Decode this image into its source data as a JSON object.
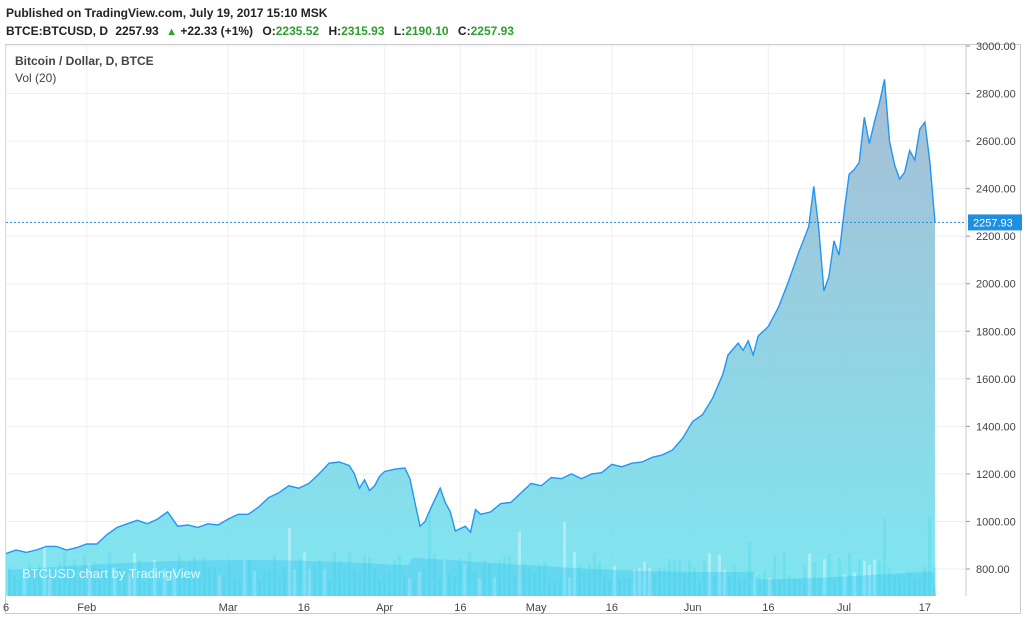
{
  "header": {
    "published": "Published on TradingView.com, July 19, 2017 15:10 MSK",
    "symbol": "BTCE:BTCUSD, D",
    "last": "2257.93",
    "change": "+22.33 (+1%)",
    "o_label": "O:",
    "o_value": "2235.52",
    "h_label": "H:",
    "h_value": "2315.93",
    "l_label": "L:",
    "l_value": "2190.10",
    "c_label": "C:",
    "c_value": "2257.93"
  },
  "legend": {
    "line1": "Bitcoin / Dollar, D, BTCE",
    "line2": "Vol (20)"
  },
  "watermark": "BTCUSD chart by TradingView",
  "colors": {
    "line": "#2196f3",
    "area_top": "#9fb6cf",
    "area_bottom": "#70e4f0",
    "volume": "#4ddbe6",
    "volume_ma": "#33c0f0",
    "price_badge": "#1f8fe0",
    "grid": "#eeeff2"
  },
  "chart_data": {
    "type": "area",
    "title": "Bitcoin / Dollar, D, BTCE",
    "x_range": [
      "2017-01-16",
      "2017-07-19"
    ],
    "ylim": [
      700,
      3000
    ],
    "y_ticks": [
      800,
      1000,
      1200,
      1400,
      1600,
      1800,
      2000,
      2200,
      2400,
      2600,
      2800,
      3000
    ],
    "y_tick_labels": [
      "800.00",
      "1000.00",
      "1200.00",
      "1400.00",
      "1600.00",
      "1800.00",
      "2000.00",
      "2200.00",
      "2400.00",
      "2600.00",
      "2800.00",
      "3000.00"
    ],
    "x_ticks": [
      {
        "date": "2017-01-16",
        "label": "6"
      },
      {
        "date": "2017-02-01",
        "label": "Feb"
      },
      {
        "date": "2017-03-01",
        "label": "Mar"
      },
      {
        "date": "2017-03-16",
        "label": "16"
      },
      {
        "date": "2017-04-01",
        "label": "Apr"
      },
      {
        "date": "2017-04-16",
        "label": "16"
      },
      {
        "date": "2017-05-01",
        "label": "May"
      },
      {
        "date": "2017-05-16",
        "label": "16"
      },
      {
        "date": "2017-06-01",
        "label": "Jun"
      },
      {
        "date": "2017-06-16",
        "label": "16"
      },
      {
        "date": "2017-07-01",
        "label": "Jul"
      },
      {
        "date": "2017-07-17",
        "label": "17"
      }
    ],
    "last_price": 2257.93,
    "last_price_label": "2257.93",
    "grid": true,
    "series": [
      {
        "name": "Bitcoin / Dollar, D, BTCE",
        "points": [
          [
            "2017-01-16",
            865
          ],
          [
            "2017-01-18",
            880
          ],
          [
            "2017-01-20",
            870
          ],
          [
            "2017-01-22",
            880
          ],
          [
            "2017-01-24",
            895
          ],
          [
            "2017-01-26",
            895
          ],
          [
            "2017-01-28",
            880
          ],
          [
            "2017-01-30",
            890
          ],
          [
            "2017-02-01",
            905
          ],
          [
            "2017-02-03",
            905
          ],
          [
            "2017-02-05",
            945
          ],
          [
            "2017-02-07",
            975
          ],
          [
            "2017-02-09",
            990
          ],
          [
            "2017-02-11",
            1005
          ],
          [
            "2017-02-13",
            990
          ],
          [
            "2017-02-15",
            1010
          ],
          [
            "2017-02-17",
            1040
          ],
          [
            "2017-02-19",
            980
          ],
          [
            "2017-02-21",
            985
          ],
          [
            "2017-02-23",
            975
          ],
          [
            "2017-02-25",
            990
          ],
          [
            "2017-02-27",
            985
          ],
          [
            "2017-03-01",
            1010
          ],
          [
            "2017-03-03",
            1030
          ],
          [
            "2017-03-05",
            1030
          ],
          [
            "2017-03-07",
            1060
          ],
          [
            "2017-03-09",
            1100
          ],
          [
            "2017-03-11",
            1120
          ],
          [
            "2017-03-13",
            1150
          ],
          [
            "2017-03-15",
            1140
          ],
          [
            "2017-03-17",
            1160
          ],
          [
            "2017-03-19",
            1200
          ],
          [
            "2017-03-21",
            1245
          ],
          [
            "2017-03-23",
            1250
          ],
          [
            "2017-03-25",
            1235
          ],
          [
            "2017-03-26",
            1200
          ],
          [
            "2017-03-27",
            1140
          ],
          [
            "2017-03-28",
            1175
          ],
          [
            "2017-03-29",
            1130
          ],
          [
            "2017-03-30",
            1150
          ],
          [
            "2017-03-31",
            1190
          ],
          [
            "2017-04-01",
            1210
          ],
          [
            "2017-04-03",
            1220
          ],
          [
            "2017-04-05",
            1225
          ],
          [
            "2017-04-06",
            1180
          ],
          [
            "2017-04-07",
            1080
          ],
          [
            "2017-04-08",
            980
          ],
          [
            "2017-04-09",
            1000
          ],
          [
            "2017-04-10",
            1050
          ],
          [
            "2017-04-12",
            1140
          ],
          [
            "2017-04-13",
            1080
          ],
          [
            "2017-04-14",
            1040
          ],
          [
            "2017-04-15",
            960
          ],
          [
            "2017-04-17",
            980
          ],
          [
            "2017-04-18",
            955
          ],
          [
            "2017-04-19",
            1050
          ],
          [
            "2017-04-20",
            1030
          ],
          [
            "2017-04-22",
            1040
          ],
          [
            "2017-04-24",
            1075
          ],
          [
            "2017-04-26",
            1080
          ],
          [
            "2017-04-28",
            1120
          ],
          [
            "2017-04-30",
            1160
          ],
          [
            "2017-05-02",
            1150
          ],
          [
            "2017-05-04",
            1185
          ],
          [
            "2017-05-06",
            1180
          ],
          [
            "2017-05-08",
            1200
          ],
          [
            "2017-05-10",
            1180
          ],
          [
            "2017-05-12",
            1200
          ],
          [
            "2017-05-14",
            1205
          ],
          [
            "2017-05-16",
            1240
          ],
          [
            "2017-05-18",
            1230
          ],
          [
            "2017-05-20",
            1245
          ],
          [
            "2017-05-22",
            1250
          ],
          [
            "2017-05-24",
            1270
          ],
          [
            "2017-05-26",
            1280
          ],
          [
            "2017-05-28",
            1300
          ],
          [
            "2017-05-30",
            1350
          ],
          [
            "2017-06-01",
            1420
          ],
          [
            "2017-06-03",
            1450
          ],
          [
            "2017-06-05",
            1520
          ],
          [
            "2017-06-07",
            1620
          ],
          [
            "2017-06-08",
            1700
          ],
          [
            "2017-06-10",
            1750
          ],
          [
            "2017-06-11",
            1720
          ],
          [
            "2017-06-12",
            1760
          ],
          [
            "2017-06-13",
            1700
          ],
          [
            "2017-06-14",
            1780
          ],
          [
            "2017-06-16",
            1820
          ],
          [
            "2017-06-18",
            1900
          ],
          [
            "2017-06-20",
            2010
          ],
          [
            "2017-06-22",
            2130
          ],
          [
            "2017-06-24",
            2240
          ],
          [
            "2017-06-25",
            2410
          ],
          [
            "2017-06-26",
            2230
          ],
          [
            "2017-06-27",
            1970
          ],
          [
            "2017-06-28",
            2030
          ],
          [
            "2017-06-29",
            2180
          ],
          [
            "2017-06-30",
            2120
          ],
          [
            "2017-07-01",
            2300
          ],
          [
            "2017-07-02",
            2460
          ],
          [
            "2017-07-03",
            2480
          ],
          [
            "2017-07-04",
            2510
          ],
          [
            "2017-07-05",
            2700
          ],
          [
            "2017-07-06",
            2590
          ],
          [
            "2017-07-07",
            2680
          ],
          [
            "2017-07-08",
            2760
          ],
          [
            "2017-07-09",
            2860
          ],
          [
            "2017-07-10",
            2600
          ],
          [
            "2017-07-11",
            2500
          ],
          [
            "2017-07-12",
            2440
          ],
          [
            "2017-07-13",
            2470
          ],
          [
            "2017-07-14",
            2560
          ],
          [
            "2017-07-15",
            2520
          ],
          [
            "2017-07-16",
            2650
          ],
          [
            "2017-07-17",
            2680
          ],
          [
            "2017-07-18",
            2510
          ],
          [
            "2017-07-19",
            2257.93
          ]
        ]
      }
    ]
  }
}
